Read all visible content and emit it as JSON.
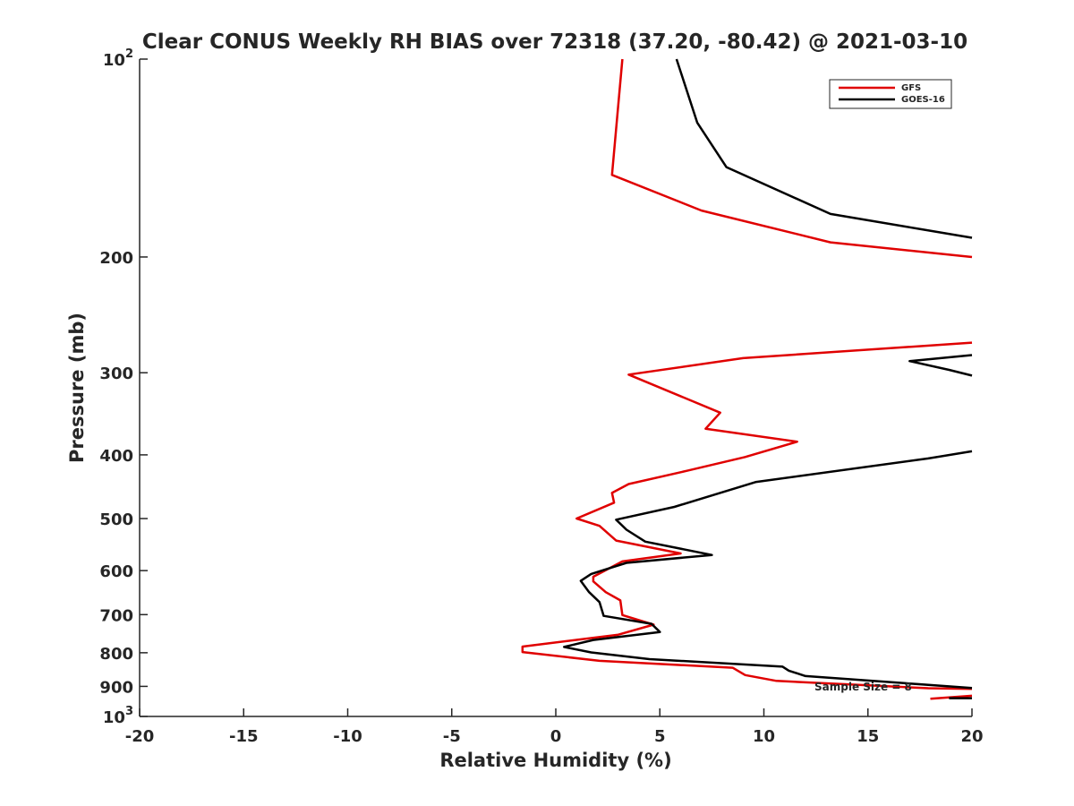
{
  "chart_data": {
    "type": "line",
    "title": "Clear CONUS Weekly RH BIAS over 72318 (37.20, -80.42) @ 2021-03-10",
    "xlabel": "Relative Humidity (%)",
    "ylabel": "Pressure (mb)",
    "xlim": [
      -20,
      20
    ],
    "ylim": [
      100,
      1000
    ],
    "yscale": "log",
    "y_reversed": true,
    "grid": false,
    "legend_position": "top-right",
    "x_ticks": [
      "-20",
      "-15",
      "-10",
      "-5",
      "0",
      "5",
      "10",
      "15",
      "20"
    ],
    "y_ticks": [
      {
        "value": 100,
        "base": "10",
        "exp": "2"
      },
      {
        "value": 200,
        "label": "200"
      },
      {
        "value": 300,
        "label": "300"
      },
      {
        "value": 400,
        "label": "400"
      },
      {
        "value": 500,
        "label": "500"
      },
      {
        "value": 600,
        "label": "600"
      },
      {
        "value": 700,
        "label": "700"
      },
      {
        "value": 800,
        "label": "800"
      },
      {
        "value": 900,
        "label": "900"
      },
      {
        "value": 1000,
        "base": "10",
        "exp": "3"
      }
    ],
    "annotation": "Sample Size = 8",
    "series": [
      {
        "name": "GFS",
        "color": "#e00000",
        "segments": [
          [
            [
              3.2,
              100
            ],
            [
              2.7,
              150
            ],
            [
              7.0,
              170
            ],
            [
              13.2,
              190
            ],
            [
              20,
              200
            ]
          ],
          [
            [
              20,
              270
            ],
            [
              9.0,
              285
            ],
            [
              3.5,
              302
            ],
            [
              7.9,
              345
            ],
            [
              7.2,
              365
            ],
            [
              11.6,
              382
            ],
            [
              9.1,
              403
            ],
            [
              6.3,
              423
            ],
            [
              3.5,
              443
            ],
            [
              2.7,
              457
            ],
            [
              2.8,
              473
            ],
            [
              1.0,
              500
            ],
            [
              2.1,
              513
            ],
            [
              2.9,
              540
            ],
            [
              6.0,
              565
            ],
            [
              3.2,
              581
            ],
            [
              1.8,
              613
            ],
            [
              1.8,
              623
            ],
            [
              2.4,
              647
            ],
            [
              3.1,
              666
            ],
            [
              3.2,
              701
            ],
            [
              4.7,
              725
            ],
            [
              3.0,
              751
            ],
            [
              -1.6,
              783
            ],
            [
              -1.6,
              798
            ],
            [
              2.1,
              823
            ],
            [
              8.5,
              843
            ],
            [
              9.1,
              865
            ],
            [
              10.6,
              883
            ],
            [
              17.9,
              906
            ],
            [
              20,
              908
            ]
          ],
          [
            [
              18.0,
              940
            ],
            [
              20,
              930
            ]
          ]
        ]
      },
      {
        "name": "GOES-16",
        "color": "#000000",
        "segments": [
          [
            [
              5.8,
              100
            ],
            [
              6.8,
              125
            ],
            [
              8.2,
              146
            ],
            [
              13.2,
              172
            ],
            [
              20,
              187
            ]
          ],
          [
            [
              20,
              282
            ],
            [
              17.0,
              288
            ],
            [
              18.9,
              297
            ],
            [
              20,
              303
            ]
          ],
          [
            [
              20,
              395
            ],
            [
              17.9,
              405
            ],
            [
              9.6,
              440
            ],
            [
              5.7,
              480
            ],
            [
              2.9,
              502
            ],
            [
              3.4,
              520
            ],
            [
              4.3,
              542
            ],
            [
              7.5,
              568
            ],
            [
              3.4,
              584
            ],
            [
              1.7,
              607
            ],
            [
              1.2,
              622
            ],
            [
              1.6,
              647
            ],
            [
              2.1,
              670
            ],
            [
              2.3,
              703
            ],
            [
              4.6,
              723
            ],
            [
              5.0,
              744
            ],
            [
              1.8,
              765
            ],
            [
              0.4,
              784
            ],
            [
              1.7,
              799
            ],
            [
              4.5,
              818
            ],
            [
              10.9,
              840
            ],
            [
              11.2,
              852
            ],
            [
              12.0,
              868
            ],
            [
              20,
              905
            ]
          ],
          [
            [
              18.9,
              938
            ],
            [
              20,
              938
            ]
          ]
        ]
      }
    ]
  }
}
